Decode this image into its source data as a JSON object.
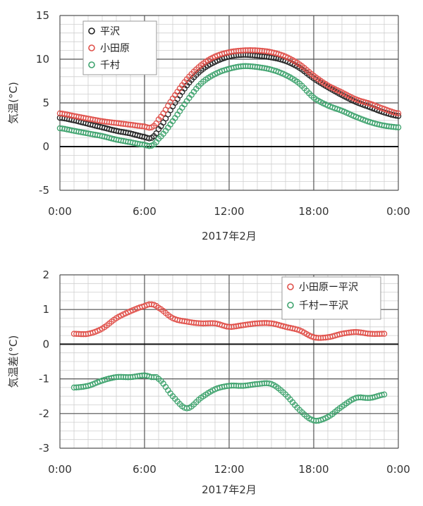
{
  "chart_data": [
    {
      "type": "scatter",
      "title": "",
      "xlabel": "2017年2月",
      "ylabel": "気温(°C)",
      "xlim": [
        0,
        24
      ],
      "ylim": [
        -5,
        15
      ],
      "x_ticks": [
        0,
        6,
        12,
        18,
        24
      ],
      "x_tick_labels": [
        "0:00",
        "6:00",
        "12:00",
        "18:00",
        "0:00"
      ],
      "y_ticks": [
        -5,
        0,
        5,
        10,
        15
      ],
      "y_tick_labels": [
        "-5",
        "0",
        "5",
        "10",
        "15"
      ],
      "grid": true,
      "legend_position": "top-left",
      "x": [
        0,
        1,
        2,
        3,
        4,
        5,
        6,
        6.5,
        7,
        8,
        9,
        10,
        11,
        12,
        13,
        14,
        15,
        16,
        17,
        18,
        19,
        20,
        21,
        22,
        23,
        24
      ],
      "series": [
        {
          "name": "平沢",
          "color": "#222222",
          "values": [
            3.3,
            3.0,
            2.6,
            2.2,
            1.8,
            1.5,
            1.1,
            1.0,
            2.0,
            4.6,
            7.0,
            8.7,
            9.7,
            10.3,
            10.5,
            10.4,
            10.2,
            9.8,
            9.0,
            7.8,
            6.8,
            5.9,
            5.1,
            4.5,
            3.9,
            3.5
          ]
        },
        {
          "name": "小田原",
          "color": "#e0504a",
          "values": [
            3.8,
            3.5,
            3.2,
            2.9,
            2.7,
            2.5,
            2.3,
            2.2,
            3.1,
            5.5,
            7.7,
            9.3,
            10.3,
            10.8,
            11.0,
            11.0,
            10.8,
            10.3,
            9.4,
            8.1,
            7.0,
            6.2,
            5.4,
            4.9,
            4.3,
            3.8
          ]
        },
        {
          "name": "千村",
          "color": "#3fa36e",
          "values": [
            2.1,
            1.8,
            1.5,
            1.2,
            0.8,
            0.5,
            0.2,
            0.1,
            0.9,
            2.9,
            5.2,
            7.2,
            8.3,
            8.9,
            9.2,
            9.1,
            8.8,
            8.2,
            7.2,
            5.6,
            4.7,
            4.1,
            3.4,
            2.8,
            2.4,
            2.2
          ]
        }
      ]
    },
    {
      "type": "scatter",
      "title": "",
      "xlabel": "2017年2月",
      "ylabel": "気温差(°C)",
      "xlim": [
        0,
        24
      ],
      "ylim": [
        -3,
        2
      ],
      "x_ticks": [
        0,
        6,
        12,
        18,
        24
      ],
      "x_tick_labels": [
        "0:00",
        "6:00",
        "12:00",
        "18:00",
        "0:00"
      ],
      "y_ticks": [
        -3,
        -2,
        -1,
        0,
        1,
        2
      ],
      "y_tick_labels": [
        "-3",
        "-2",
        "-1",
        "0",
        "1",
        "2"
      ],
      "grid": true,
      "legend_position": "top-right",
      "x": [
        1,
        2,
        3,
        4,
        5,
        6,
        6.5,
        7,
        8,
        9,
        10,
        11,
        12,
        13,
        14,
        15,
        16,
        17,
        18,
        19,
        20,
        21,
        22,
        23
      ],
      "series": [
        {
          "name": "小田原ー平沢",
          "color": "#e0504a",
          "values": [
            0.3,
            0.3,
            0.45,
            0.75,
            0.95,
            1.1,
            1.15,
            1.05,
            0.75,
            0.65,
            0.6,
            0.6,
            0.5,
            0.55,
            0.6,
            0.6,
            0.5,
            0.4,
            0.2,
            0.2,
            0.3,
            0.35,
            0.3,
            0.3
          ]
        },
        {
          "name": "千村ー平沢",
          "color": "#3fa36e",
          "values": [
            -1.25,
            -1.2,
            -1.05,
            -0.95,
            -0.95,
            -0.9,
            -0.95,
            -1.0,
            -1.5,
            -1.85,
            -1.55,
            -1.3,
            -1.2,
            -1.2,
            -1.15,
            -1.15,
            -1.45,
            -1.9,
            -2.2,
            -2.1,
            -1.8,
            -1.55,
            -1.55,
            -1.45
          ]
        }
      ]
    }
  ]
}
